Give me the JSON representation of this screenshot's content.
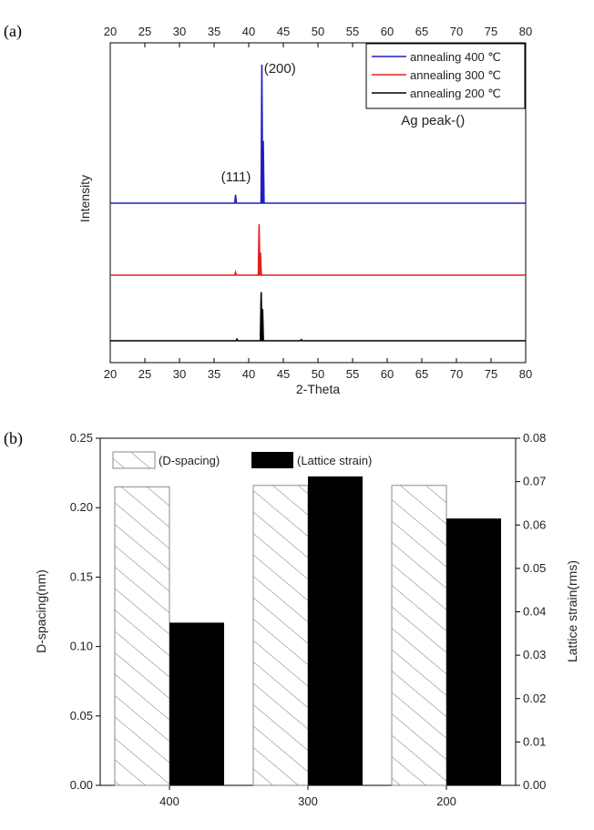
{
  "panel_a_label": "(a)",
  "panel_b_label": "(b)",
  "chart_data": [
    {
      "type": "line",
      "panel": "(a)",
      "title": "",
      "xlabel": "2-Theta",
      "ylabel": "Intensity",
      "xlim": [
        20,
        80
      ],
      "xticks": [
        20,
        25,
        30,
        35,
        40,
        45,
        50,
        55,
        60,
        65,
        70,
        75,
        80
      ],
      "legend_position": "top-right",
      "grid": false,
      "series": [
        {
          "name": "annealing 400 ℃",
          "color": "#1f1fbf",
          "peaks": [
            {
              "x": 38.1,
              "h": 0.06
            },
            {
              "x": 41.9,
              "h": 1.0
            },
            {
              "x": 42.1,
              "h": 0.45
            }
          ]
        },
        {
          "name": "annealing 300 ℃",
          "color": "#e02020",
          "peaks": [
            {
              "x": 38.1,
              "h": 0.05
            },
            {
              "x": 41.5,
              "h": 0.9
            },
            {
              "x": 41.7,
              "h": 0.4
            }
          ]
        },
        {
          "name": "annealing 200 ℃",
          "color": "#000000",
          "peaks": [
            {
              "x": 38.3,
              "h": 0.03
            },
            {
              "x": 41.8,
              "h": 0.92
            },
            {
              "x": 42.0,
              "h": 0.6
            },
            {
              "x": 47.6,
              "h": 0.02
            }
          ]
        }
      ],
      "annotations": [
        {
          "text": "(200)",
          "x": 42.2
        },
        {
          "text": "(111)",
          "x": 36.0
        },
        {
          "text": "Ag peak-()",
          "x": 62.0
        }
      ]
    },
    {
      "type": "bar",
      "panel": "(b)",
      "title": "",
      "categories": [
        "400",
        "300",
        "200"
      ],
      "xlabel": "",
      "ylabel": "D-spacing(nm)",
      "ylabel_right": "Lattice strain(rms)",
      "ylim": [
        0,
        0.25
      ],
      "ylim_right": [
        0,
        0.08
      ],
      "yticks": [
        "0.00",
        "0.05",
        "0.10",
        "0.15",
        "0.20",
        "0.25"
      ],
      "yticks_right": [
        "0.00",
        "0.01",
        "0.02",
        "0.03",
        "0.04",
        "0.05",
        "0.06",
        "0.07",
        "0.08"
      ],
      "legend_position": "top-left",
      "series": [
        {
          "name": "(D-spacing)",
          "axis": "left",
          "fill": "hatched",
          "values": [
            0.215,
            0.216,
            0.216
          ]
        },
        {
          "name": "(Lattice strain)",
          "axis": "right",
          "fill": "#000000",
          "values": [
            0.0375,
            0.0712,
            0.0615
          ]
        }
      ]
    }
  ]
}
